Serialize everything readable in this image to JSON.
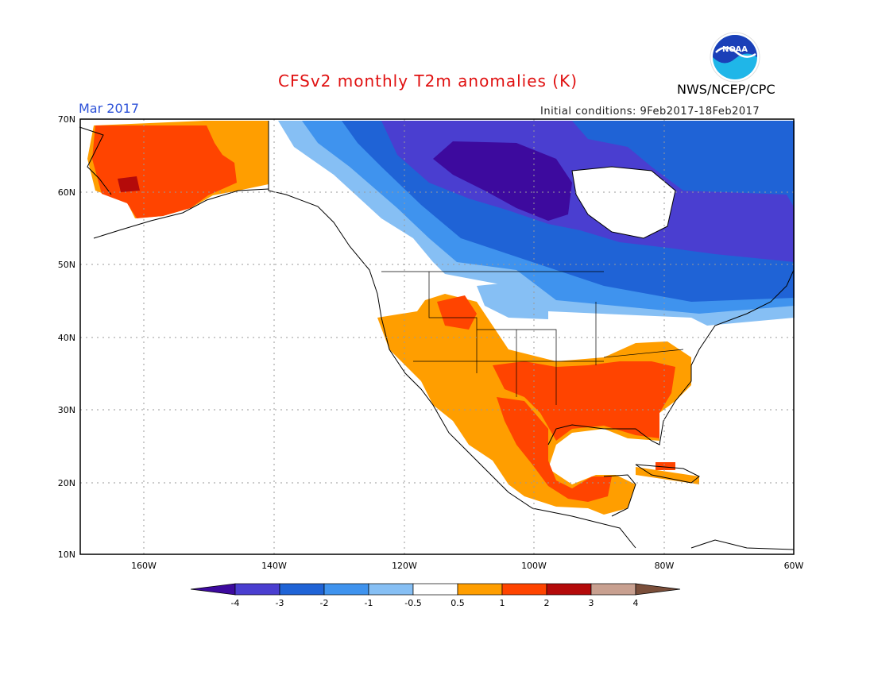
{
  "header": {
    "title": "CFSv2 monthly T2m anomalies (K)",
    "month": "Mar 2017",
    "initial_conditions": "Initial conditions: 9Feb2017-18Feb2017",
    "agency": "NWS/NCEP/CPC",
    "logo_text": "NOAA"
  },
  "map": {
    "lat_labels": [
      "70N",
      "60N",
      "50N",
      "40N",
      "30N",
      "20N",
      "10N"
    ],
    "lon_labels": [
      "160W",
      "140W",
      "120W",
      "100W",
      "80W",
      "60W"
    ],
    "lon_range": [
      -172,
      -60
    ],
    "lat_range": [
      10,
      70
    ]
  },
  "legend": {
    "labels": [
      "-4",
      "-3",
      "-2",
      "-1",
      "-0.5",
      "0.5",
      "1",
      "2",
      "3",
      "4"
    ],
    "colors": [
      "#3d0a9e",
      "#4a3ed0",
      "#1f63d6",
      "#3f93ee",
      "#86bff4",
      "#ffffff",
      "#ff9e00",
      "#ff4400",
      "#b40a0a",
      "#c8a090",
      "#7a4e3a"
    ]
  },
  "colors": {
    "strong_cold": "#3d0a9e",
    "cold": "#4a3ed0",
    "cool": "#1f63d6",
    "mild_cool": "#3f93ee",
    "slight_cool": "#86bff4",
    "slight_warm": "#ff9e00",
    "warm": "#ff4400",
    "hot": "#b40a0a",
    "title_red": "#e01010",
    "month_blue": "#2d52d8"
  }
}
